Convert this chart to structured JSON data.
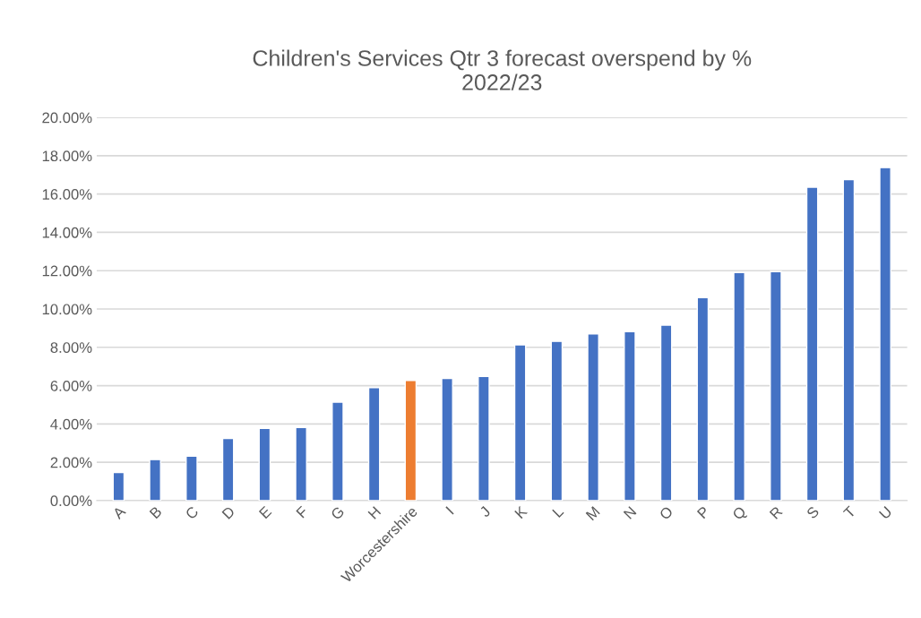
{
  "chart_data": {
    "type": "bar",
    "title": "Children's Services Qtr 3 forecast overspend by %\n2022/23",
    "categories": [
      "A",
      "B",
      "C",
      "D",
      "E",
      "F",
      "G",
      "H",
      "Worcestershire",
      "I",
      "J",
      "K",
      "L",
      "M",
      "N",
      "O",
      "P",
      "Q",
      "R",
      "S",
      "T",
      "U"
    ],
    "values": [
      1.47,
      2.14,
      2.32,
      3.24,
      3.77,
      3.82,
      5.14,
      5.89,
      6.27,
      6.37,
      6.48,
      8.13,
      8.31,
      8.7,
      8.82,
      9.16,
      10.59,
      11.9,
      11.95,
      16.36,
      16.75,
      17.38
    ],
    "colors": [
      "#4472c4",
      "#4472c4",
      "#4472c4",
      "#4472c4",
      "#4472c4",
      "#4472c4",
      "#4472c4",
      "#4472c4",
      "#ed7d31",
      "#4472c4",
      "#4472c4",
      "#4472c4",
      "#4472c4",
      "#4472c4",
      "#4472c4",
      "#4472c4",
      "#4472c4",
      "#4472c4",
      "#4472c4",
      "#4472c4",
      "#4472c4",
      "#4472c4"
    ],
    "ylim": [
      0,
      20
    ],
    "yticks": [
      {
        "value": 0,
        "label": "0.00%"
      },
      {
        "value": 2,
        "label": "2.00%"
      },
      {
        "value": 4,
        "label": "4.00%"
      },
      {
        "value": 6,
        "label": "6.00%"
      },
      {
        "value": 8,
        "label": "8.00%"
      },
      {
        "value": 10,
        "label": "10.00%"
      },
      {
        "value": 12,
        "label": "12.00%"
      },
      {
        "value": 14,
        "label": "14.00%"
      },
      {
        "value": 16,
        "label": "16.00%"
      },
      {
        "value": 18,
        "label": "18.00%"
      },
      {
        "value": 20,
        "label": "20.00%"
      }
    ],
    "grid": "y"
  }
}
